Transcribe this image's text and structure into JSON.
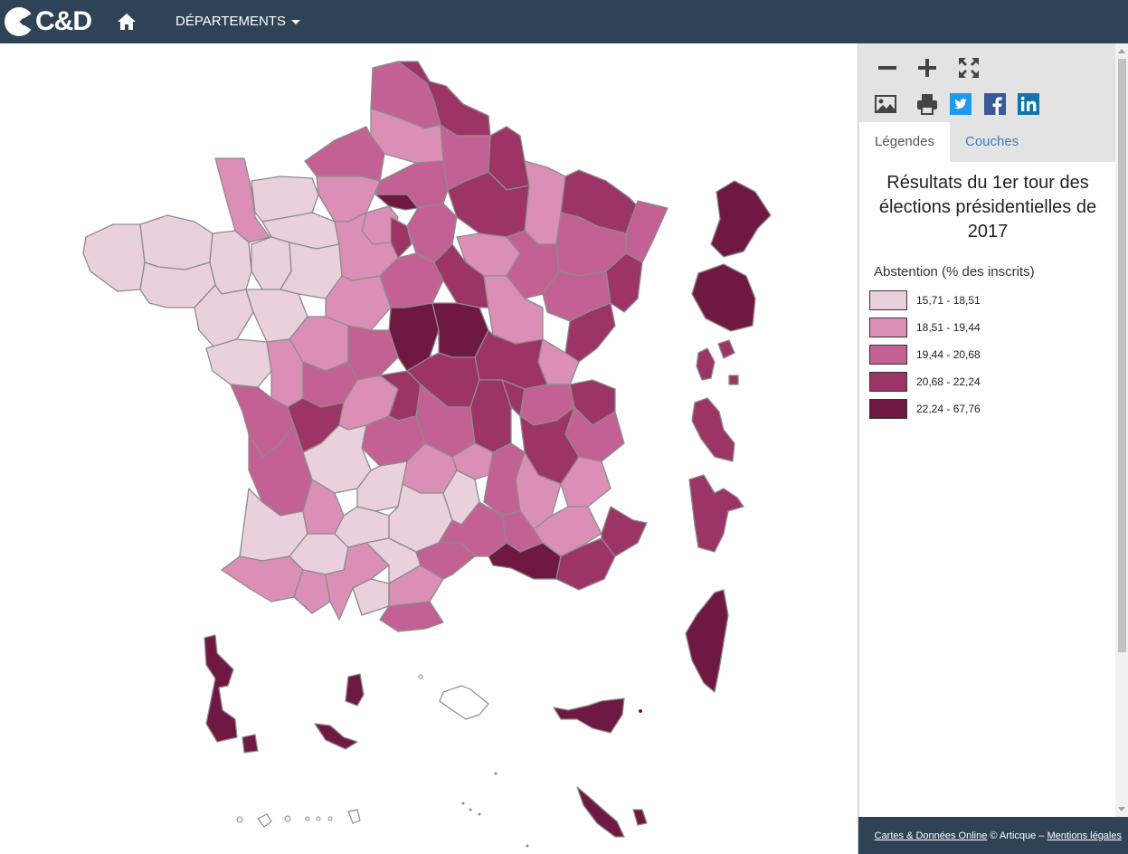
{
  "navbar": {
    "logo_text": "C&D",
    "home_icon": "home-icon",
    "menu_label": "DÉPARTEMENTS"
  },
  "toolbar": {
    "zoom_out_icon": "minus-icon",
    "zoom_in_icon": "plus-icon",
    "fullscreen_icon": "expand-icon",
    "export_image_icon": "image-icon",
    "print_icon": "print-icon",
    "twitter_icon": "twitter-icon",
    "facebook_icon": "facebook-icon",
    "linkedin_icon": "linkedin-icon"
  },
  "tabs": {
    "legend": "Légendes",
    "layers": "Couches"
  },
  "legend": {
    "title": "Résultats du 1er tour des élections présidentielles de 2017",
    "subtitle": "Abstention (% des inscrits)",
    "classes": [
      {
        "label": "15,71 - 18,51",
        "color": "#ead0dc"
      },
      {
        "label": "18,51 - 19,44",
        "color": "#dc8fb6"
      },
      {
        "label": "19,44 - 20,68",
        "color": "#c46194"
      },
      {
        "label": "20,68 - 22,24",
        "color": "#9c3465"
      },
      {
        "label": "22,24 - 67,76",
        "color": "#6e1842"
      }
    ]
  },
  "footer": {
    "link1": "Cartes & Données Online",
    "copyright": "© Articque –",
    "link2": "Mentions légales"
  },
  "colors": {
    "navbar": "#2f4357",
    "link": "#3a7bbf"
  }
}
